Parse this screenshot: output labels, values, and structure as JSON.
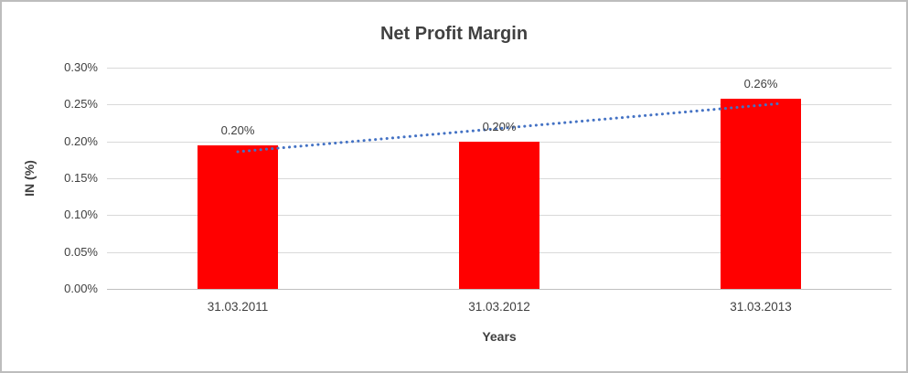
{
  "chart_data": {
    "type": "bar",
    "title": "Net Profit Margin",
    "xlabel": "Years",
    "ylabel": "IN (%)",
    "categories": [
      "31.03.2011",
      "31.03.2012",
      "31.03.2013"
    ],
    "values": [
      0.195,
      0.2,
      0.258
    ],
    "data_labels": [
      "0.20%",
      "0.20%",
      "0.26%"
    ],
    "ylim": [
      0,
      0.3
    ],
    "ytick_step": 0.05,
    "ytick_labels": [
      "0.00%",
      "0.05%",
      "0.10%",
      "0.15%",
      "0.20%",
      "0.25%",
      "0.30%"
    ],
    "grid": true,
    "legend": "none",
    "bar_color": "#ff0000",
    "grid_color": "#d9d9d9",
    "text_color": "#404040",
    "trendline": {
      "style": "dotted",
      "color": "#4472c4",
      "start_value": 0.186,
      "end_value": 0.249
    }
  }
}
